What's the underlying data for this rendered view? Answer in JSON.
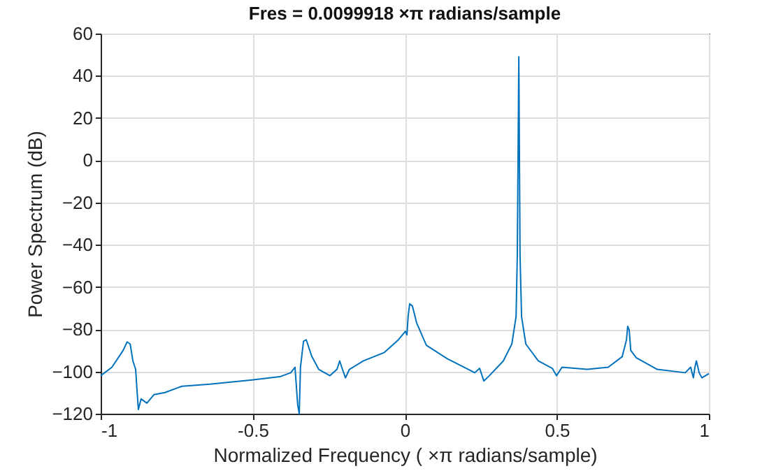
{
  "chart_data": {
    "type": "line",
    "title": "Fres = 0.0099918  ×π radians/sample",
    "xlabel": "Normalized Frequency ( ×π radians/sample)",
    "ylabel": "Power Spectrum (dB)",
    "x": [
      -1,
      -0.963,
      -0.926,
      -0.913,
      -0.903,
      -0.894,
      -0.885,
      -0.88,
      -0.876,
      -0.867,
      -0.848,
      -0.825,
      -0.789,
      -0.733,
      -0.641,
      -0.503,
      -0.411,
      -0.375,
      -0.361,
      -0.352,
      -0.347,
      -0.343,
      -0.333,
      -0.324,
      -0.306,
      -0.283,
      -0.246,
      -0.223,
      -0.214,
      -0.205,
      -0.195,
      -0.182,
      -0.136,
      -0.067,
      -0.021,
      0.002,
      0.007,
      0.011,
      0.016,
      0.025,
      0.039,
      0.071,
      0.14,
      0.209,
      0.23,
      0.246,
      0.26,
      0.278,
      0.324,
      0.352,
      0.366,
      0.37,
      0.375,
      0.379,
      0.384,
      0.398,
      0.439,
      0.485,
      0.499,
      0.517,
      0.6,
      0.669,
      0.715,
      0.729,
      0.733,
      0.738,
      0.743,
      0.761,
      0.83,
      0.922,
      0.94,
      0.949,
      0.954,
      0.959,
      0.968,
      0.977,
      1
    ],
    "series": [
      {
        "color": "#0072bd",
        "values": [
          -102,
          -98,
          -90,
          -86,
          -87,
          -95,
          -99,
          -110,
          -118,
          -113,
          -115,
          -111,
          -110,
          -107,
          -106,
          -104,
          -102.5,
          -100.6,
          -98,
          -116,
          -120,
          -98,
          -85.7,
          -85,
          -92.8,
          -99,
          -102,
          -99,
          -95,
          -99,
          -103,
          -99,
          -95,
          -91,
          -85,
          -81,
          -82.7,
          -74,
          -68,
          -69,
          -77,
          -87.6,
          -94,
          -99,
          -100.6,
          -98.5,
          -104.5,
          -102,
          -95,
          -87,
          -74,
          -45,
          49,
          -45,
          -74,
          -87,
          -95,
          -98.5,
          -102,
          -98,
          -99,
          -98,
          -93,
          -85,
          -78.6,
          -80.5,
          -90,
          -93.5,
          -99,
          -100.6,
          -98,
          -103,
          -98,
          -95,
          -100.6,
          -103,
          -101
        ]
      }
    ],
    "xlim": [
      -1,
      1
    ],
    "xticks": [
      -1,
      -0.5,
      0,
      0.5,
      1
    ],
    "ylim": [
      -120,
      60
    ],
    "yticks": [
      -120,
      -100,
      -80,
      -60,
      -40,
      -20,
      0,
      20,
      40,
      60
    ],
    "grid": true,
    "legend": false,
    "marker": "none",
    "line_style": "solid"
  }
}
